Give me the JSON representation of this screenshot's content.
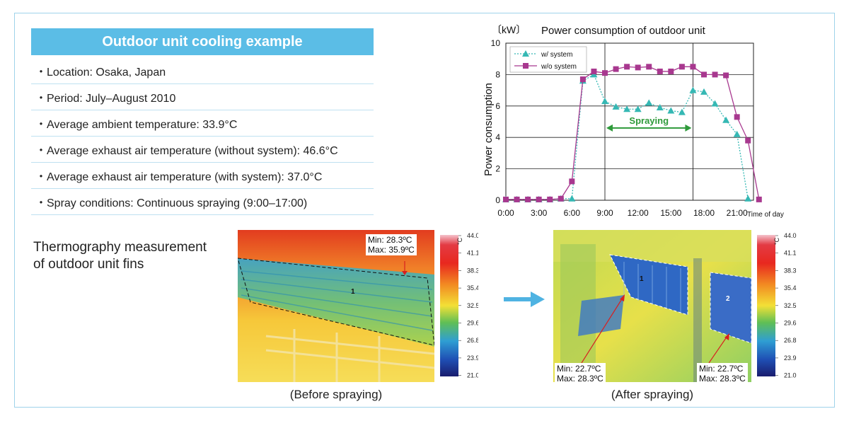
{
  "info": {
    "title": "Outdoor unit cooling example",
    "items": [
      "・Location: Osaka, Japan",
      "・Period: July–August 2010",
      "・Average ambient temperature: 33.9°C",
      "・Average exhaust air temperature (without system): 46.6°C",
      "・Average exhaust air temperature (with system): 37.0°C",
      "・Spray conditions: Continuous spraying (9:00–17:00)"
    ]
  },
  "thermography": {
    "label_line1": "Thermography measurement",
    "label_line2": "of outdoor unit fins",
    "scale_unit": "°C",
    "scale_ticks": [
      "44.0",
      "41.1",
      "38.3",
      "35.4",
      "32.5",
      "29.6",
      "26.8",
      "23.9",
      "21.0"
    ],
    "before": {
      "caption": "(Before spraying)",
      "min": "Min: 28.3ºC",
      "max": "Max: 35.9ºC",
      "region_label": "1"
    },
    "after": {
      "caption": "(After spraying)",
      "region1_label": "1",
      "region2_label": "2",
      "region1_min": "Min: 22.7ºC",
      "region1_max": "Max: 28.3ºC",
      "region2_min": "Min: 22.7ºC",
      "region2_max": "Max: 28.3ºC"
    }
  },
  "chart_data": {
    "type": "line",
    "title": "Power consumption of outdoor unit",
    "unit_label": "〔kW〕",
    "ylabel": "Power consumption",
    "xlabel": "Time of day",
    "ylim": [
      0,
      10
    ],
    "xlim": [
      0,
      22.5
    ],
    "y_ticks": [
      "0",
      "2",
      "4",
      "6",
      "8",
      "10"
    ],
    "x_ticks": [
      {
        "x": 0,
        "label": "0:00"
      },
      {
        "x": 3,
        "label": "3:00"
      },
      {
        "x": 6,
        "label": "6:00"
      },
      {
        "x": 9,
        "label": "9:00"
      },
      {
        "x": 12,
        "label": "12:00"
      },
      {
        "x": 15,
        "label": "15:00"
      },
      {
        "x": 18,
        "label": "18:00"
      },
      {
        "x": 21,
        "label": "21:00"
      }
    ],
    "grid": true,
    "legend_position": "top-left",
    "annotation": {
      "label": "Spraying",
      "x_start": 9,
      "x_end": 17
    },
    "series": [
      {
        "name": "w/ system",
        "color": "#35b8b4",
        "marker": "triangle",
        "line_style": "dotted",
        "x": [
          0,
          1,
          2,
          3,
          4,
          5,
          6,
          7,
          8,
          9,
          10,
          11,
          12,
          13,
          14,
          15,
          16,
          17,
          18,
          19,
          20,
          21,
          22
        ],
        "y": [
          0.05,
          0.05,
          0.05,
          0.05,
          0.05,
          0.1,
          0.1,
          7.6,
          8.0,
          6.3,
          5.95,
          5.8,
          5.8,
          6.2,
          5.9,
          5.7,
          5.6,
          7.0,
          6.9,
          6.15,
          5.1,
          4.2,
          0.1
        ]
      },
      {
        "name": "w/o system",
        "color": "#a8388f",
        "marker": "square",
        "line_style": "solid",
        "x": [
          0,
          1,
          2,
          3,
          4,
          5,
          6,
          7,
          8,
          9,
          10,
          11,
          12,
          13,
          14,
          15,
          16,
          17,
          18,
          19,
          20,
          21,
          22,
          23
        ],
        "y": [
          0.05,
          0.05,
          0.05,
          0.05,
          0.05,
          0.1,
          1.2,
          7.7,
          8.2,
          8.1,
          8.35,
          8.5,
          8.45,
          8.5,
          8.2,
          8.2,
          8.5,
          8.5,
          8.0,
          8.0,
          7.95,
          5.3,
          3.8,
          0.05
        ]
      }
    ]
  }
}
